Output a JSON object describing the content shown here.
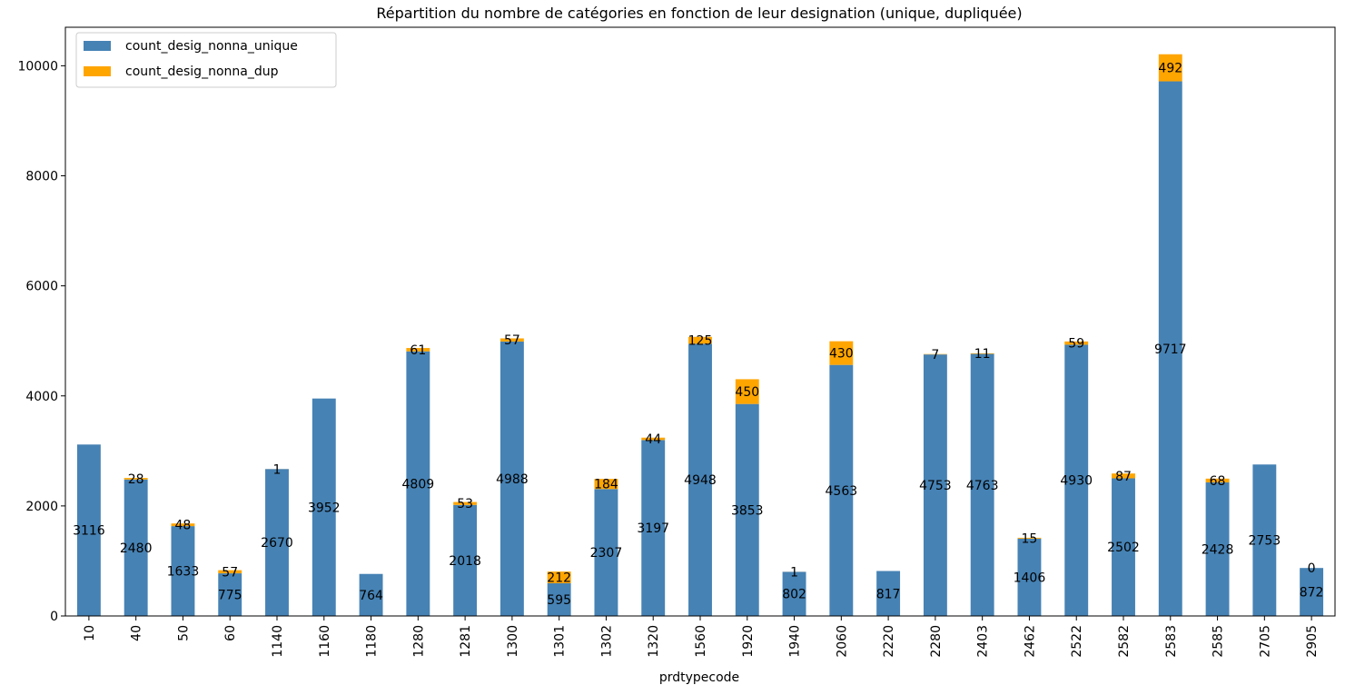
{
  "chart_data": {
    "type": "bar",
    "stacked": true,
    "title": "Répartition du nombre de catégories en fonction de leur designation (unique, dupliquée)",
    "xlabel": "prdtypecode",
    "ylabel": "",
    "ylim": [
      0,
      10700
    ],
    "yticks": [
      "0",
      "2000",
      "4000",
      "6000",
      "8000",
      "10000"
    ],
    "ytick_values": [
      0,
      2000,
      4000,
      6000,
      8000,
      10000
    ],
    "legend_position": "top-left",
    "grid": false,
    "categories": [
      "10",
      "40",
      "50",
      "60",
      "1140",
      "1160",
      "1180",
      "1280",
      "1281",
      "1300",
      "1301",
      "1302",
      "1320",
      "1560",
      "1920",
      "1940",
      "2060",
      "2220",
      "2280",
      "2403",
      "2462",
      "2522",
      "2582",
      "2583",
      "2585",
      "2705",
      "2905"
    ],
    "series": [
      {
        "name": "count_desig_nonna_unique",
        "color": "#4682b4",
        "values": [
          3116,
          2480,
          1633,
          775,
          2670,
          3952,
          764,
          4809,
          2018,
          4988,
          595,
          2307,
          3197,
          4948,
          3853,
          802,
          4563,
          817,
          4753,
          4763,
          1406,
          4930,
          2502,
          9717,
          2428,
          2753,
          872
        ],
        "labels": [
          "3116",
          "2480",
          "1633",
          "775",
          "2670",
          "3952",
          "764",
          "4809",
          "2018",
          "4988",
          "595",
          "2307",
          "3197",
          "4948",
          "3853",
          "802",
          "4563",
          "817",
          "4753",
          "4763",
          "1406",
          "4930",
          "2502",
          "9717",
          "2428",
          "2753",
          "872"
        ]
      },
      {
        "name": "count_desig_nonna_dup",
        "color": "#ffa500",
        "values": [
          0,
          28,
          48,
          57,
          1,
          0,
          0,
          61,
          53,
          57,
          212,
          184,
          44,
          125,
          450,
          1,
          430,
          0,
          7,
          11,
          15,
          59,
          87,
          492,
          68,
          0,
          0
        ],
        "labels": [
          "",
          "28",
          "48",
          "57",
          "1",
          "",
          "",
          "61",
          "53",
          "57",
          "212",
          "184",
          "44",
          "125",
          "450",
          "1",
          "430",
          "",
          "7",
          "11",
          "15",
          "59",
          "87",
          "492",
          "68",
          "",
          "0"
        ]
      }
    ]
  }
}
